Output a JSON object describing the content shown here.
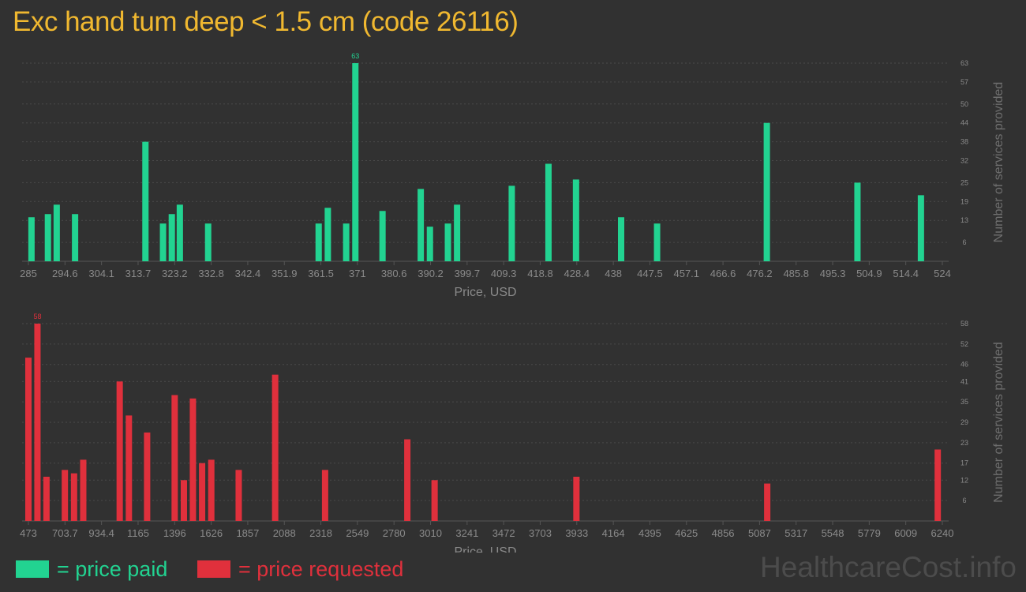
{
  "title": "Exc hand tum deep < 1.5 cm (code 26116)",
  "colors": {
    "background": "#313131",
    "title": "#f0b830",
    "paid": "#22d391",
    "requested": "#e0303c",
    "axis_text": "#8a8a8a",
    "grid": "#4a4a4a"
  },
  "legend": {
    "paid_label": "= price paid",
    "requested_label": "= price requested"
  },
  "watermark": "HealthcareCost.info",
  "chart_data": [
    {
      "type": "bar",
      "series": [
        {
          "name": "price paid"
        }
      ],
      "xlabel": "Price, USD",
      "ylabel": "Number of services provided",
      "xlim": [
        285,
        524
      ],
      "xticks": [
        "285",
        "294.6",
        "304.1",
        "313.7",
        "323.2",
        "332.8",
        "342.4",
        "351.9",
        "361.5",
        "371",
        "380.6",
        "390.2",
        "399.7",
        "409.3",
        "418.8",
        "428.4",
        "438",
        "447.5",
        "457.1",
        "466.6",
        "476.2",
        "485.8",
        "495.3",
        "504.9",
        "514.4",
        "524"
      ],
      "yticks": [
        6,
        13,
        19,
        25,
        32,
        38,
        44,
        50,
        57,
        63
      ],
      "ylim": [
        0,
        63
      ],
      "max_label": "63",
      "bars": [
        {
          "x": 285.8,
          "y": 14
        },
        {
          "x": 290.1,
          "y": 15
        },
        {
          "x": 292.4,
          "y": 18
        },
        {
          "x": 297.2,
          "y": 15
        },
        {
          "x": 315.6,
          "y": 38
        },
        {
          "x": 320.2,
          "y": 12
        },
        {
          "x": 322.5,
          "y": 15
        },
        {
          "x": 324.6,
          "y": 18
        },
        {
          "x": 332.0,
          "y": 12
        },
        {
          "x": 360.9,
          "y": 12
        },
        {
          "x": 363.3,
          "y": 17
        },
        {
          "x": 368.1,
          "y": 12
        },
        {
          "x": 370.5,
          "y": 63
        },
        {
          "x": 377.6,
          "y": 16
        },
        {
          "x": 387.6,
          "y": 23
        },
        {
          "x": 390.0,
          "y": 11
        },
        {
          "x": 394.7,
          "y": 12
        },
        {
          "x": 397.1,
          "y": 18
        },
        {
          "x": 411.4,
          "y": 24
        },
        {
          "x": 421.0,
          "y": 31
        },
        {
          "x": 428.2,
          "y": 26
        },
        {
          "x": 440.0,
          "y": 14
        },
        {
          "x": 449.4,
          "y": 12
        },
        {
          "x": 478.1,
          "y": 44
        },
        {
          "x": 501.8,
          "y": 25
        },
        {
          "x": 518.4,
          "y": 21
        }
      ]
    },
    {
      "type": "bar",
      "series": [
        {
          "name": "price requested"
        }
      ],
      "xlabel": "Price, USD",
      "ylabel": "Number of services provided",
      "xlim": [
        473,
        6240
      ],
      "xticks": [
        "473",
        "703.7",
        "934.4",
        "1165",
        "1396",
        "1626",
        "1857",
        "2088",
        "2318",
        "2549",
        "2780",
        "3010",
        "3241",
        "3472",
        "3703",
        "3933",
        "4164",
        "4395",
        "4625",
        "4856",
        "5087",
        "5317",
        "5548",
        "5779",
        "6009",
        "6240"
      ],
      "yticks": [
        6,
        12,
        17,
        23,
        29,
        35,
        41,
        46,
        52,
        58
      ],
      "ylim": [
        0,
        58
      ],
      "max_label": "58",
      "bars": [
        {
          "x": 473,
          "y": 48
        },
        {
          "x": 530,
          "y": 58
        },
        {
          "x": 587,
          "y": 13
        },
        {
          "x": 703,
          "y": 15
        },
        {
          "x": 761,
          "y": 14
        },
        {
          "x": 819,
          "y": 18
        },
        {
          "x": 1049,
          "y": 41
        },
        {
          "x": 1107,
          "y": 31
        },
        {
          "x": 1222,
          "y": 26
        },
        {
          "x": 1396,
          "y": 37
        },
        {
          "x": 1454,
          "y": 12
        },
        {
          "x": 1511,
          "y": 36
        },
        {
          "x": 1569,
          "y": 17
        },
        {
          "x": 1627,
          "y": 18
        },
        {
          "x": 1800,
          "y": 15
        },
        {
          "x": 2030,
          "y": 43
        },
        {
          "x": 2345,
          "y": 15
        },
        {
          "x": 2864,
          "y": 24
        },
        {
          "x": 3036,
          "y": 12
        },
        {
          "x": 3931,
          "y": 13
        },
        {
          "x": 5135,
          "y": 11
        },
        {
          "x": 6211,
          "y": 21
        }
      ]
    }
  ]
}
